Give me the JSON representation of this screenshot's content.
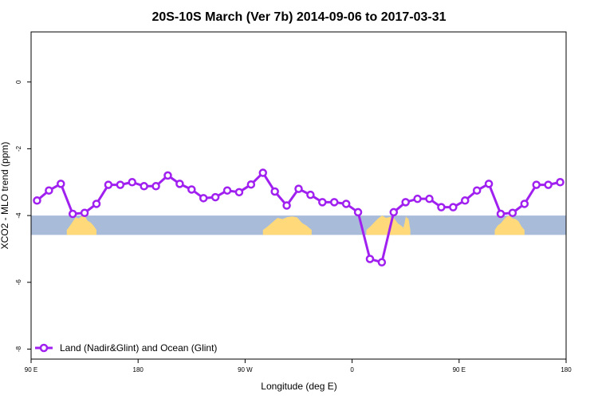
{
  "chart_data": {
    "type": "line",
    "title": "20S-10S March (Ver 7b)   2014-09-06 to 2017-03-31",
    "xlabel": "Longitude (deg E)",
    "ylabel": "XCO2 - MLO trend (ppm)",
    "x_ticks": [
      {
        "value": 90,
        "label": "90 E"
      },
      {
        "value": 180,
        "label": "180"
      },
      {
        "value": 270,
        "label": "90 W"
      },
      {
        "value": 360,
        "label": "0"
      },
      {
        "value": 450,
        "label": "90 E"
      },
      {
        "value": 540,
        "label": "180"
      }
    ],
    "y_ticks": [
      {
        "value": 0,
        "label": "0"
      },
      {
        "value": -2,
        "label": "-2"
      },
      {
        "value": -4,
        "label": "-4"
      },
      {
        "value": -6,
        "label": "-6"
      },
      {
        "value": -8,
        "label": "-8"
      }
    ],
    "xlim": [
      90,
      540
    ],
    "ylim": [
      -8.3,
      1.5
    ],
    "grid": false,
    "legend_position": "bottom-left",
    "series": [
      {
        "name": "Land (Nadir&Glint) and Ocean (Glint)",
        "color": "#a020f0",
        "x": [
          95,
          105,
          115,
          125,
          135,
          145,
          155,
          165,
          175,
          185,
          195,
          205,
          215,
          225,
          235,
          245,
          255,
          265,
          275,
          285,
          295,
          305,
          315,
          325,
          335,
          345,
          355,
          365,
          375,
          385,
          395,
          405,
          415,
          425,
          435,
          445,
          455,
          465,
          475,
          485,
          495,
          505,
          515,
          525,
          535
        ],
        "y": [
          -3.55,
          -3.25,
          -3.05,
          -3.95,
          -3.92,
          -3.65,
          -3.08,
          -3.08,
          -3.0,
          -3.12,
          -3.12,
          -2.8,
          -3.05,
          -3.22,
          -3.48,
          -3.45,
          -3.25,
          -3.3,
          -3.07,
          -2.72,
          -3.28,
          -3.7,
          -3.2,
          -3.38,
          -3.6,
          -3.6,
          -3.65,
          -3.9,
          -5.3,
          -5.4,
          -3.9,
          -3.6,
          -3.5,
          -3.5,
          -3.75,
          -3.75,
          -3.55,
          -3.25,
          -3.05,
          -3.95,
          -3.92,
          -3.65,
          -3.08,
          -3.08,
          -3.0
        ]
      }
    ],
    "background_strip": {
      "y_range": [
        -4.58,
        -4.0
      ],
      "ocean_color": "#a8bcda",
      "land_color": "#ffd97a",
      "land_regions": [
        {
          "label": "Australia",
          "x": [
            120,
            145
          ]
        },
        {
          "label": "South America",
          "x": [
            285,
            326
          ]
        },
        {
          "label": "Africa",
          "x": [
            372,
            405
          ]
        },
        {
          "label": "Madagascar",
          "x": [
            403,
            409
          ]
        },
        {
          "label": "Australia",
          "x": [
            480,
            505
          ]
        }
      ]
    }
  }
}
